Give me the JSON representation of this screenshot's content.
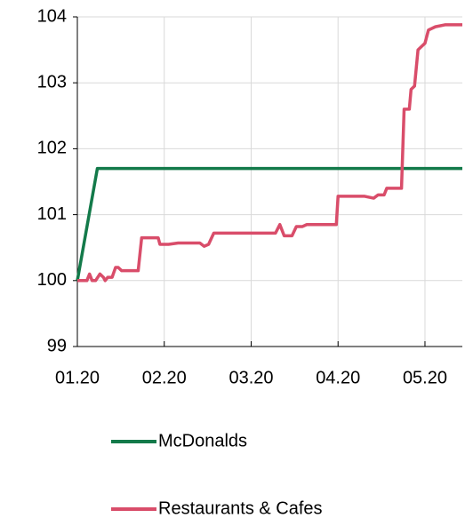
{
  "chart_data": {
    "type": "line",
    "xlim": [
      0,
      4.43
    ],
    "ylim": [
      99,
      104
    ],
    "xticks": [
      {
        "value": 0,
        "label": "01.20"
      },
      {
        "value": 1,
        "label": "02.20"
      },
      {
        "value": 2,
        "label": "03.20"
      },
      {
        "value": 3,
        "label": "04.20"
      },
      {
        "value": 4,
        "label": "05.20"
      }
    ],
    "yticks": [
      99,
      100,
      101,
      102,
      103,
      104
    ],
    "grid": true,
    "legend": "bottom",
    "series": [
      {
        "name": "McDonalds",
        "color": "#137a4a",
        "x": [
          0,
          0.23,
          4.43
        ],
        "values": [
          100,
          101.7,
          101.7
        ]
      },
      {
        "name": "Restaurants & Cafes",
        "color": "#d94d6a",
        "x": [
          0,
          0.11,
          0.14,
          0.17,
          0.21,
          0.26,
          0.3,
          0.32,
          0.35,
          0.4,
          0.44,
          0.47,
          0.51,
          0.54,
          0.7,
          0.74,
          0.93,
          0.95,
          1.05,
          1.16,
          1.41,
          1.46,
          1.51,
          1.57,
          2.28,
          2.33,
          2.38,
          2.47,
          2.52,
          2.59,
          2.64,
          2.98,
          3.0,
          3.3,
          3.41,
          3.46,
          3.53,
          3.56,
          3.73,
          3.76,
          3.82,
          3.84,
          3.88,
          3.92,
          3.96,
          4.0,
          4.04,
          4.12,
          4.23,
          4.43
        ],
        "values": [
          100,
          100,
          100.1,
          100,
          100,
          100.1,
          100.05,
          100,
          100.05,
          100.05,
          100.2,
          100.2,
          100.15,
          100.15,
          100.15,
          100.65,
          100.65,
          100.55,
          100.55,
          100.57,
          100.57,
          100.52,
          100.55,
          100.72,
          100.72,
          100.85,
          100.68,
          100.68,
          100.82,
          100.82,
          100.85,
          100.85,
          101.28,
          101.28,
          101.25,
          101.3,
          101.3,
          101.4,
          101.4,
          102.6,
          102.6,
          102.9,
          102.95,
          103.5,
          103.55,
          103.6,
          103.8,
          103.85,
          103.88,
          103.88
        ]
      }
    ]
  }
}
